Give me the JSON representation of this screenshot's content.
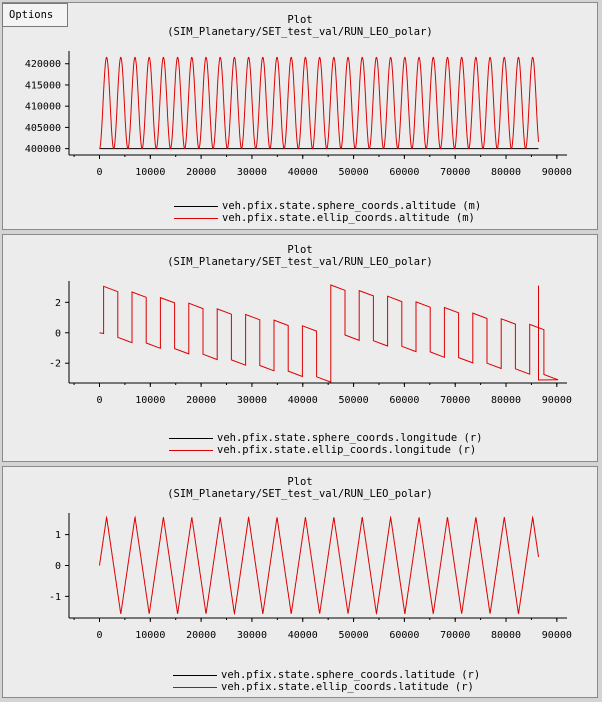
{
  "toolbar": {
    "options_label": "Options"
  },
  "chart_data": [
    {
      "type": "line",
      "title": "Plot",
      "subtitle": "(SIM_Planetary/SET_test_val/RUN_LEO_polar)",
      "xlim": [
        -6000,
        92000
      ],
      "xticks": [
        0,
        10000,
        20000,
        30000,
        40000,
        50000,
        60000,
        70000,
        80000,
        90000
      ],
      "ylim": [
        398500,
        423000
      ],
      "yticks": [
        400000,
        405000,
        410000,
        415000,
        420000
      ],
      "grid": false,
      "legend_position": "bottom-center",
      "series": [
        {
          "name": "veh.pfix.state.sphere_coords.altitude (m)",
          "color": "#000000",
          "pattern": "flat",
          "period": 2795,
          "min": 400000,
          "max": 400000,
          "x0": 0,
          "x1": 86400
        },
        {
          "name": "veh.pfix.state.ellip_coords.altitude (m)",
          "color": "#dd0000",
          "pattern": "sine",
          "period": 2795,
          "min": 400000,
          "max": 421500,
          "x0": 0,
          "x1": 86400
        }
      ]
    },
    {
      "type": "line",
      "title": "Plot",
      "subtitle": "(SIM_Planetary/SET_test_val/RUN_LEO_polar)",
      "xlim": [
        -6000,
        92000
      ],
      "xticks": [
        0,
        10000,
        20000,
        30000,
        40000,
        50000,
        60000,
        70000,
        80000,
        90000
      ],
      "ylim": [
        -3.3,
        3.4
      ],
      "yticks": [
        -2,
        0,
        2
      ],
      "grid": false,
      "legend_position": "bottom-center",
      "series": [
        {
          "name": "veh.pfix.state.sphere_coords.longitude (r)",
          "color": "#000000",
          "pattern": "none",
          "x0": 0,
          "x1": 86400
        },
        {
          "name": "veh.pfix.state.ellip_coords.longitude (r)",
          "color": "#dd0000",
          "pattern": "square",
          "period": 5590,
          "x0": 0,
          "x1": 86400,
          "high_start": 3.05,
          "low_start": -0.3,
          "drift_per_cycle": -0.37,
          "wrap_at": 43200
        }
      ]
    },
    {
      "type": "line",
      "title": "Plot",
      "subtitle": "(SIM_Planetary/SET_test_val/RUN_LEO_polar)",
      "xlim": [
        -6000,
        92000
      ],
      "xticks": [
        0,
        10000,
        20000,
        30000,
        40000,
        50000,
        60000,
        70000,
        80000,
        90000
      ],
      "ylim": [
        -1.7,
        1.7
      ],
      "yticks": [
        -1,
        0,
        1
      ],
      "grid": false,
      "legend_position": "bottom-center",
      "series": [
        {
          "name": "veh.pfix.state.sphere_coords.latitude (r)",
          "color": "#000000",
          "pattern": "none",
          "x0": 0,
          "x1": 86400
        },
        {
          "name": "veh.pfix.state.ellip_coords.latitude (r)",
          "color": "#dd0000",
          "pattern": "triangle",
          "period": 5590,
          "amplitude": 1.57,
          "x0": 0,
          "x1": 86400
        }
      ]
    }
  ]
}
